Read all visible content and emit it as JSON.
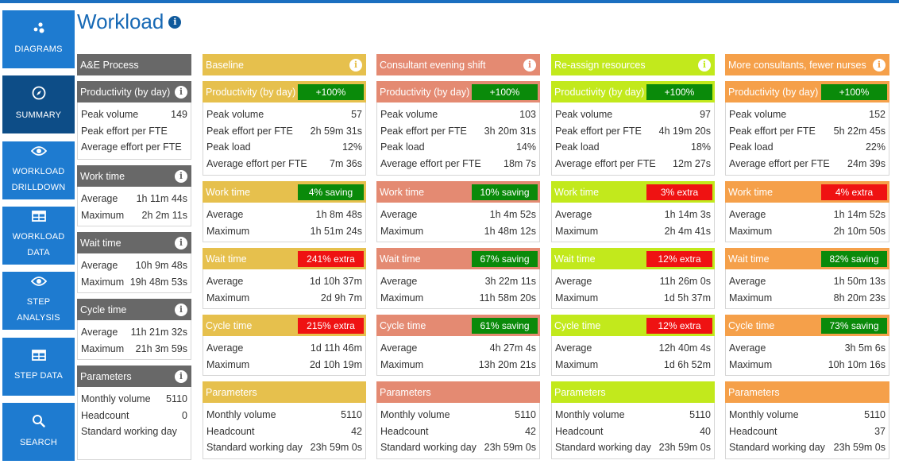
{
  "page": {
    "title": "Workload",
    "info_icon": "info-icon"
  },
  "sidebar": {
    "items": [
      {
        "label": "DIAGRAMS",
        "icon": "diagrams-icon"
      },
      {
        "label": "SUMMARY",
        "icon": "compass-icon"
      },
      {
        "label": "WORKLOAD DRILLDOWN",
        "line1": "WORKLOAD",
        "line2": "DRILLDOWN",
        "icon": "eye-icon"
      },
      {
        "label": "WORKLOAD DATA",
        "line1": "WORKLOAD",
        "line2": "DATA",
        "icon": "table-icon"
      },
      {
        "label": "STEP ANALYSIS",
        "line1": "STEP",
        "line2": "ANALYSIS",
        "icon": "eye-icon"
      },
      {
        "label": "STEP DATA",
        "icon": "table-icon"
      },
      {
        "label": "SEARCH",
        "icon": "search-icon"
      }
    ]
  },
  "colors": {
    "process": "#686868",
    "baseline": "#e6c04d",
    "consultant": "#e48a72",
    "reassign": "#c2e91c",
    "more": "#f5a04a",
    "saving": "#0a8a0a",
    "extra": "#ef1212"
  },
  "process": {
    "title": "A&E Process",
    "productivity": {
      "label": "Productivity (by day)",
      "rows": [
        {
          "k": "Peak volume",
          "v": "149"
        },
        {
          "k": "Peak effort per FTE",
          "v": ""
        },
        {
          "k": "Average effort per FTE",
          "v": ""
        }
      ]
    },
    "work": {
      "label": "Work time",
      "rows": [
        {
          "k": "Average",
          "v": "1h 11m 44s"
        },
        {
          "k": "Maximum",
          "v": "2h 2m 11s"
        }
      ]
    },
    "wait": {
      "label": "Wait time",
      "rows": [
        {
          "k": "Average",
          "v": "10h 9m 48s"
        },
        {
          "k": "Maximum",
          "v": "19h 48m 53s"
        }
      ]
    },
    "cycle": {
      "label": "Cycle time",
      "rows": [
        {
          "k": "Average",
          "v": "11h 21m 32s"
        },
        {
          "k": "Maximum",
          "v": "21h 3m 59s"
        }
      ]
    },
    "params": {
      "label": "Parameters",
      "rows": [
        {
          "k": "Monthly volume",
          "v": "5110"
        },
        {
          "k": "Headcount",
          "v": "0"
        },
        {
          "k": "Standard working day",
          "v": ""
        }
      ]
    }
  },
  "scenarios": [
    {
      "title": "Baseline",
      "productivity": {
        "label": "Productivity (by day)",
        "badge": "+100%",
        "rows": [
          {
            "k": "Peak volume",
            "v": "57"
          },
          {
            "k": "Peak effort per FTE",
            "v": "2h 59m 31s"
          },
          {
            "k": "Peak load",
            "v": "12%"
          },
          {
            "k": "Average effort per FTE",
            "v": "7m 36s"
          }
        ]
      },
      "work": {
        "label": "Work time",
        "badge": "4% saving",
        "rows": [
          {
            "k": "Average",
            "v": "1h 8m 48s"
          },
          {
            "k": "Maximum",
            "v": "1h 51m 24s"
          }
        ]
      },
      "wait": {
        "label": "Wait time",
        "badge": "241% extra",
        "rows": [
          {
            "k": "Average",
            "v": "1d 10h 37m"
          },
          {
            "k": "Maximum",
            "v": "2d 9h 7m"
          }
        ]
      },
      "cycle": {
        "label": "Cycle time",
        "badge": "215% extra",
        "rows": [
          {
            "k": "Average",
            "v": "1d 11h 46m"
          },
          {
            "k": "Maximum",
            "v": "2d 10h 19m"
          }
        ]
      },
      "params": {
        "label": "Parameters",
        "rows": [
          {
            "k": "Monthly volume",
            "v": "5110"
          },
          {
            "k": "Headcount",
            "v": "42"
          },
          {
            "k": "Standard working day",
            "v": "23h 59m 0s"
          }
        ]
      }
    },
    {
      "title": "Consultant evening shift",
      "productivity": {
        "label": "Productivity (by day)",
        "badge": "+100%",
        "rows": [
          {
            "k": "Peak volume",
            "v": "103"
          },
          {
            "k": "Peak effort per FTE",
            "v": "3h 20m 31s"
          },
          {
            "k": "Peak load",
            "v": "14%"
          },
          {
            "k": "Average effort per FTE",
            "v": "18m 7s"
          }
        ]
      },
      "work": {
        "label": "Work time",
        "badge": "10% saving",
        "rows": [
          {
            "k": "Average",
            "v": "1h 4m 52s"
          },
          {
            "k": "Maximum",
            "v": "1h 48m 12s"
          }
        ]
      },
      "wait": {
        "label": "Wait time",
        "badge": "67% saving",
        "rows": [
          {
            "k": "Average",
            "v": "3h 22m 11s"
          },
          {
            "k": "Maximum",
            "v": "11h 58m 20s"
          }
        ]
      },
      "cycle": {
        "label": "Cycle time",
        "badge": "61% saving",
        "rows": [
          {
            "k": "Average",
            "v": "4h 27m 4s"
          },
          {
            "k": "Maximum",
            "v": "13h 20m 21s"
          }
        ]
      },
      "params": {
        "label": "Parameters",
        "rows": [
          {
            "k": "Monthly volume",
            "v": "5110"
          },
          {
            "k": "Headcount",
            "v": "42"
          },
          {
            "k": "Standard working day",
            "v": "23h 59m 0s"
          }
        ]
      }
    },
    {
      "title": "Re-assign resources",
      "productivity": {
        "label": "Productivity (by day)",
        "badge": "+100%",
        "rows": [
          {
            "k": "Peak volume",
            "v": "97"
          },
          {
            "k": "Peak effort per FTE",
            "v": "4h 19m 20s"
          },
          {
            "k": "Peak load",
            "v": "18%"
          },
          {
            "k": "Average effort per FTE",
            "v": "12m 27s"
          }
        ]
      },
      "work": {
        "label": "Work time",
        "badge": "3% extra",
        "rows": [
          {
            "k": "Average",
            "v": "1h 14m 3s"
          },
          {
            "k": "Maximum",
            "v": "2h 4m 41s"
          }
        ]
      },
      "wait": {
        "label": "Wait time",
        "badge": "12% extra",
        "rows": [
          {
            "k": "Average",
            "v": "11h 26m 0s"
          },
          {
            "k": "Maximum",
            "v": "1d 5h 37m"
          }
        ]
      },
      "cycle": {
        "label": "Cycle time",
        "badge": "12% extra",
        "rows": [
          {
            "k": "Average",
            "v": "12h 40m 4s"
          },
          {
            "k": "Maximum",
            "v": "1d 6h 52m"
          }
        ]
      },
      "params": {
        "label": "Parameters",
        "rows": [
          {
            "k": "Monthly volume",
            "v": "5110"
          },
          {
            "k": "Headcount",
            "v": "40"
          },
          {
            "k": "Standard working day",
            "v": "23h 59m 0s"
          }
        ]
      }
    },
    {
      "title": "More consultants, fewer nurses",
      "productivity": {
        "label": "Productivity (by day)",
        "badge": "+100%",
        "rows": [
          {
            "k": "Peak volume",
            "v": "152"
          },
          {
            "k": "Peak effort per FTE",
            "v": "5h 22m 45s"
          },
          {
            "k": "Peak load",
            "v": "22%"
          },
          {
            "k": "Average effort per FTE",
            "v": "24m 39s"
          }
        ]
      },
      "work": {
        "label": "Work time",
        "badge": "4% extra",
        "rows": [
          {
            "k": "Average",
            "v": "1h 14m 52s"
          },
          {
            "k": "Maximum",
            "v": "2h 10m 50s"
          }
        ]
      },
      "wait": {
        "label": "Wait time",
        "badge": "82% saving",
        "rows": [
          {
            "k": "Average",
            "v": "1h 50m 13s"
          },
          {
            "k": "Maximum",
            "v": "8h 20m 23s"
          }
        ]
      },
      "cycle": {
        "label": "Cycle time",
        "badge": "73% saving",
        "rows": [
          {
            "k": "Average",
            "v": "3h 5m 6s"
          },
          {
            "k": "Maximum",
            "v": "10h 10m 16s"
          }
        ]
      },
      "params": {
        "label": "Parameters",
        "rows": [
          {
            "k": "Monthly volume",
            "v": "5110"
          },
          {
            "k": "Headcount",
            "v": "37"
          },
          {
            "k": "Standard working day",
            "v": "23h 59m 0s"
          }
        ]
      }
    }
  ]
}
